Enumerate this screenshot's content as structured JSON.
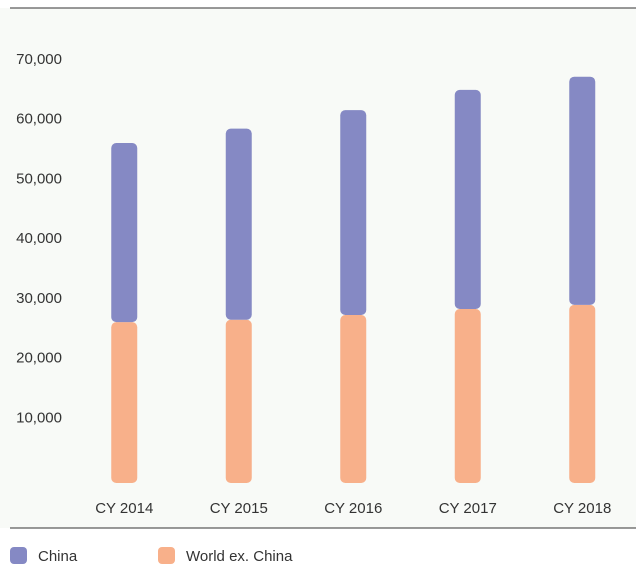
{
  "chart_data": {
    "type": "stacked_bar",
    "categories": [
      "CY 2014",
      "CY 2015",
      "CY 2016",
      "CY 2017",
      "CY 2018"
    ],
    "series": [
      {
        "name": "World ex. China",
        "color": "#f8b08a",
        "values": [
          26100,
          26500,
          27300,
          28300,
          29000
        ]
      },
      {
        "name": "China",
        "color": "#8589c4",
        "values": [
          30000,
          32000,
          34300,
          36700,
          38200
        ]
      }
    ],
    "ylim": [
      0,
      70000
    ],
    "yticks": [
      {
        "value": 10000,
        "label": "10,000"
      },
      {
        "value": 20000,
        "label": "20,000"
      },
      {
        "value": 30000,
        "label": "30,000"
      },
      {
        "value": 40000,
        "label": "40,000"
      },
      {
        "value": 50000,
        "label": "50,000"
      },
      {
        "value": 60000,
        "label": "60,000"
      },
      {
        "value": 70000,
        "label": "70,000"
      }
    ],
    "legend": "bottom-left"
  }
}
